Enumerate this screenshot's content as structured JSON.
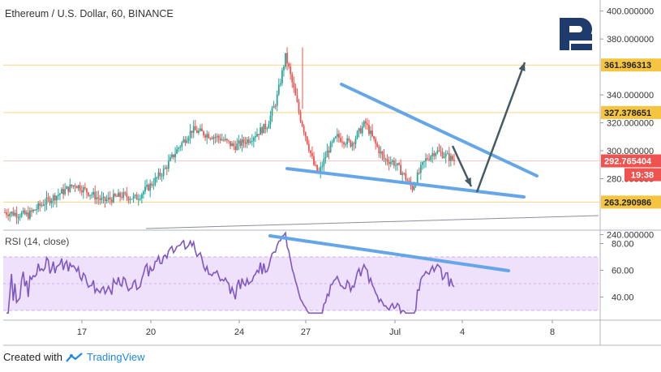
{
  "header": {
    "title": "Ethereum / U.S. Dollar, 60, BINANCE"
  },
  "rsi": {
    "label": "RSI (14, close)"
  },
  "footer": {
    "created_with": "Created with",
    "brand": "TradingView"
  },
  "colors": {
    "up": "#26a69a",
    "down": "#ef5350",
    "trend": "#64a6e8",
    "arrow": "#455a64",
    "level_line": "#f5c542",
    "rsi_line": "#7e57c2",
    "rsi_band": "#efe1fb"
  },
  "chart_data": [
    {
      "type": "candlestick",
      "title": "Ethereum / U.S. Dollar, 60, BINANCE",
      "ylim": [
        240,
        400
      ],
      "y_ticks": [
        400,
        380,
        340,
        320,
        300,
        280,
        240
      ],
      "y_tick_labels": [
        "400.000000",
        "380.000000",
        "340.000000",
        "320.000000",
        "300.000000",
        "280.000000",
        "240.000000"
      ],
      "x_tick_labels": [
        "17",
        "20",
        "24",
        "27",
        "Jul",
        "4",
        "8"
      ],
      "levels": [
        {
          "value": 361.396313,
          "label": "361.396313",
          "style": "yellow"
        },
        {
          "value": 327.378651,
          "label": "327.378651",
          "style": "yellow"
        },
        {
          "value": 292.765404,
          "label": "292.765404",
          "style": "red"
        },
        {
          "value": 263.290986,
          "label": "263.290986",
          "style": "yellow"
        }
      ],
      "countdown": "19:38",
      "price_path": [
        [
          0,
          256
        ],
        [
          5,
          254
        ],
        [
          8,
          262
        ],
        [
          12,
          270
        ],
        [
          15,
          276
        ],
        [
          17,
          272
        ],
        [
          19,
          268
        ],
        [
          21,
          264
        ],
        [
          23,
          266
        ],
        [
          25,
          268
        ],
        [
          28,
          266
        ],
        [
          31,
          275
        ],
        [
          34,
          286
        ],
        [
          37,
          302
        ],
        [
          40,
          315
        ],
        [
          43,
          312
        ],
        [
          46,
          309
        ],
        [
          49,
          303
        ],
        [
          52,
          308
        ],
        [
          56,
          318
        ],
        [
          58,
          336
        ],
        [
          60,
          368
        ],
        [
          61,
          354
        ],
        [
          62,
          340
        ],
        [
          63,
          325
        ],
        [
          64,
          314
        ],
        [
          65,
          302
        ],
        [
          66,
          290
        ],
        [
          67,
          283
        ],
        [
          69,
          300
        ],
        [
          71,
          310
        ],
        [
          74,
          305
        ],
        [
          77,
          320
        ],
        [
          79,
          306
        ],
        [
          81,
          294
        ],
        [
          83,
          292
        ],
        [
          85,
          284
        ],
        [
          87,
          273
        ],
        [
          89,
          288
        ],
        [
          90,
          294
        ],
        [
          92,
          300
        ],
        [
          94,
          297
        ],
        [
          96,
          293
        ]
      ]
    },
    {
      "type": "line",
      "title": "RSI (14, close)",
      "ylim": [
        25,
        90
      ],
      "y_ticks": [
        80,
        60,
        40
      ],
      "y_tick_labels": [
        "80.00",
        "60.00",
        "40.00"
      ],
      "band": [
        30,
        70
      ]
    }
  ]
}
